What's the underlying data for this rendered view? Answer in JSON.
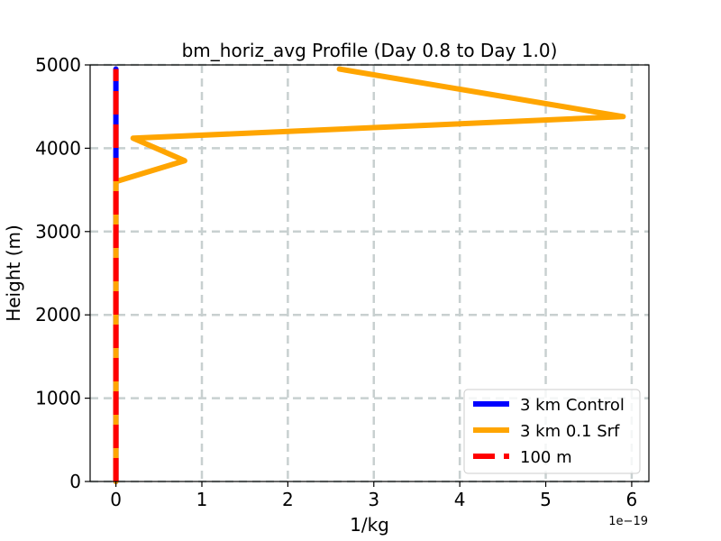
{
  "chart_data": {
    "type": "line",
    "title": "bm_horiz_avg Profile (Day 0.8 to Day 1.0)",
    "xlabel": "1/kg",
    "ylabel": "Height (m)",
    "x_offset_label": "1e−19",
    "x_scale": 1e-19,
    "xlim": [
      -0.3,
      6.2
    ],
    "ylim": [
      0,
      5000
    ],
    "x_ticks": [
      0,
      1,
      2,
      3,
      4,
      5,
      6
    ],
    "x_tick_labels": [
      "0",
      "1",
      "2",
      "3",
      "4",
      "5",
      "6"
    ],
    "y_ticks": [
      0,
      1000,
      2000,
      3000,
      4000,
      5000
    ],
    "y_tick_labels": [
      "0",
      "1000",
      "2000",
      "3000",
      "4000",
      "5000"
    ],
    "grid": true,
    "legend_position": "lower-right",
    "series": [
      {
        "name": "3 km Control",
        "color": "#0000ff",
        "style": "solid",
        "x": [
          0,
          0
        ],
        "y": [
          0,
          4950
        ]
      },
      {
        "name": "3 km 0.1 Srf",
        "color": "#ffa500",
        "style": "solid",
        "x": [
          0,
          0,
          0.8,
          0.2,
          5.9,
          2.6
        ],
        "y": [
          0,
          3600,
          3850,
          4120,
          4380,
          4950
        ]
      },
      {
        "name": "100 m",
        "color": "#ff0000",
        "style": "dashed",
        "x": [
          0,
          0
        ],
        "y": [
          0,
          4950
        ]
      }
    ]
  }
}
